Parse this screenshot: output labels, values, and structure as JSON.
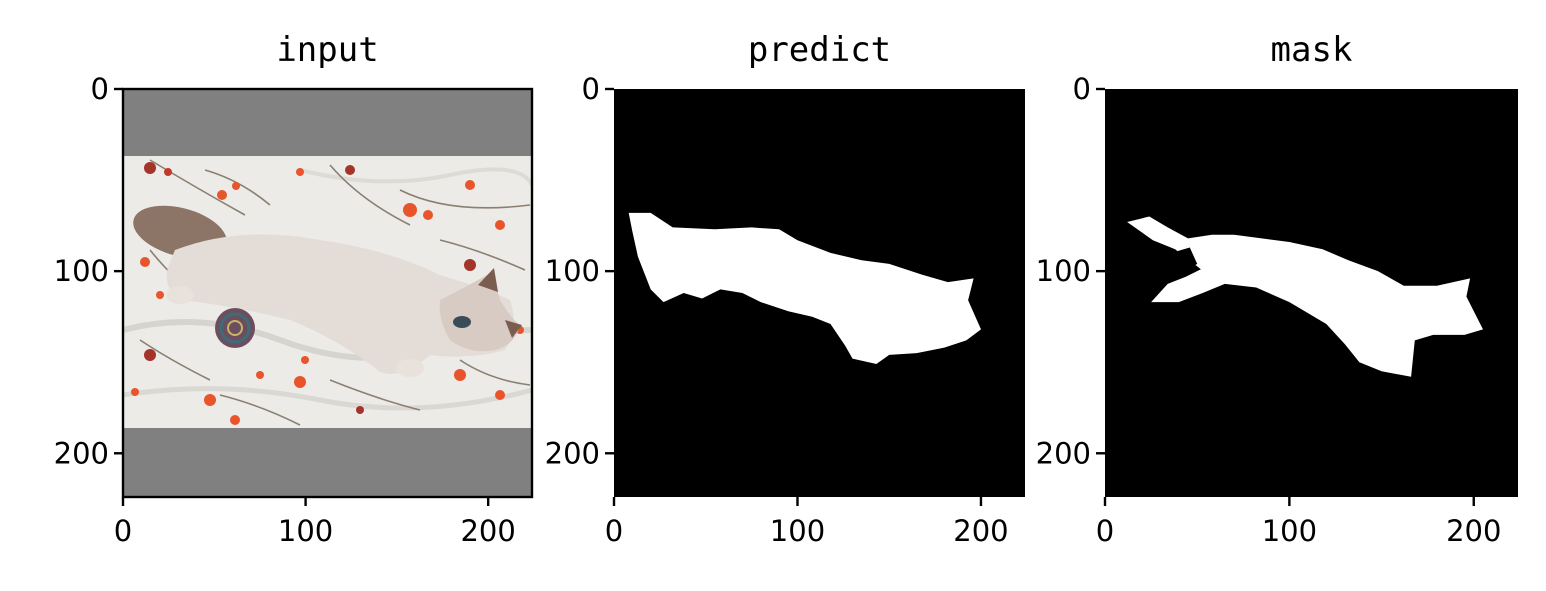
{
  "figure": {
    "background_color": "#ffffff",
    "spine_color": "#000000"
  },
  "chart_data": [
    {
      "type": "image",
      "title": "input",
      "image_extent": {
        "x": [
          0,
          224
        ],
        "y": [
          224,
          0
        ]
      },
      "xticks": [
        0,
        100,
        200
      ],
      "yticks": [
        0,
        100,
        200
      ],
      "xtick_labels": [
        "0",
        "100",
        "200"
      ],
      "ytick_labels": [
        "0",
        "100",
        "200"
      ],
      "content": "photo-letterboxed",
      "padding_rows": {
        "top": [
          0,
          36
        ],
        "bottom": [
          186,
          224
        ]
      },
      "padding_color": "#808080",
      "photo_rows": [
        36,
        186
      ],
      "photo_colors": {
        "bedsheet": "#ececea",
        "cat_body": "#e3dbd6",
        "cat_tail": "#8c7566",
        "floral": "#e8542b",
        "stems": "#8a7f70"
      }
    },
    {
      "type": "image",
      "title": "predict",
      "image_extent": {
        "x": [
          0,
          224
        ],
        "y": [
          224,
          0
        ]
      },
      "xticks": [
        0,
        100,
        200
      ],
      "yticks": [
        0,
        100,
        200
      ],
      "xtick_labels": [
        "0",
        "100",
        "200"
      ],
      "ytick_labels": [
        "0",
        "100",
        "200"
      ],
      "content": "binary-mask",
      "background_color": "#000000",
      "foreground_color": "#ffffff",
      "region_outline": [
        [
          8,
          68
        ],
        [
          20,
          68
        ],
        [
          32,
          76
        ],
        [
          55,
          77
        ],
        [
          75,
          76
        ],
        [
          90,
          77
        ],
        [
          100,
          83
        ],
        [
          118,
          90
        ],
        [
          135,
          94
        ],
        [
          150,
          96
        ],
        [
          168,
          102
        ],
        [
          182,
          106
        ],
        [
          196,
          104
        ],
        [
          193,
          116
        ],
        [
          200,
          132
        ],
        [
          192,
          138
        ],
        [
          180,
          142
        ],
        [
          165,
          145
        ],
        [
          150,
          146
        ],
        [
          143,
          151
        ],
        [
          130,
          148
        ],
        [
          126,
          141
        ],
        [
          118,
          129
        ],
        [
          108,
          125
        ],
        [
          95,
          122
        ],
        [
          80,
          117
        ],
        [
          70,
          112
        ],
        [
          58,
          110
        ],
        [
          48,
          115
        ],
        [
          38,
          112
        ],
        [
          27,
          117
        ],
        [
          20,
          110
        ],
        [
          13,
          92
        ],
        [
          10,
          78
        ]
      ]
    },
    {
      "type": "image",
      "title": "mask",
      "image_extent": {
        "x": [
          0,
          224
        ],
        "y": [
          224,
          0
        ]
      },
      "xticks": [
        0,
        100,
        200
      ],
      "yticks": [
        0,
        100,
        200
      ],
      "xtick_labels": [
        "0",
        "100",
        "200"
      ],
      "ytick_labels": [
        "0",
        "100",
        "200"
      ],
      "content": "binary-mask",
      "background_color": "#000000",
      "foreground_color": "#ffffff",
      "region_outline": [
        [
          12,
          73
        ],
        [
          24,
          70
        ],
        [
          34,
          76
        ],
        [
          45,
          82
        ],
        [
          58,
          80
        ],
        [
          70,
          80
        ],
        [
          85,
          82
        ],
        [
          100,
          84
        ],
        [
          118,
          88
        ],
        [
          132,
          94
        ],
        [
          148,
          100
        ],
        [
          162,
          108
        ],
        [
          180,
          108
        ],
        [
          198,
          104
        ],
        [
          196,
          114
        ],
        [
          205,
          132
        ],
        [
          195,
          135
        ],
        [
          178,
          135
        ],
        [
          168,
          138
        ],
        [
          166,
          158
        ],
        [
          150,
          155
        ],
        [
          138,
          150
        ],
        [
          130,
          140
        ],
        [
          120,
          129
        ],
        [
          100,
          117
        ],
        [
          82,
          109
        ],
        [
          65,
          107
        ],
        [
          53,
          112
        ],
        [
          40,
          117
        ],
        [
          25,
          117
        ],
        [
          34,
          107
        ],
        [
          44,
          103
        ],
        [
          52,
          99
        ],
        [
          38,
          88
        ],
        [
          26,
          83
        ]
      ],
      "hole_outline": [
        [
          36,
          90
        ],
        [
          46,
          87
        ],
        [
          50,
          96
        ],
        [
          42,
          101
        ],
        [
          35,
          97
        ]
      ]
    }
  ]
}
